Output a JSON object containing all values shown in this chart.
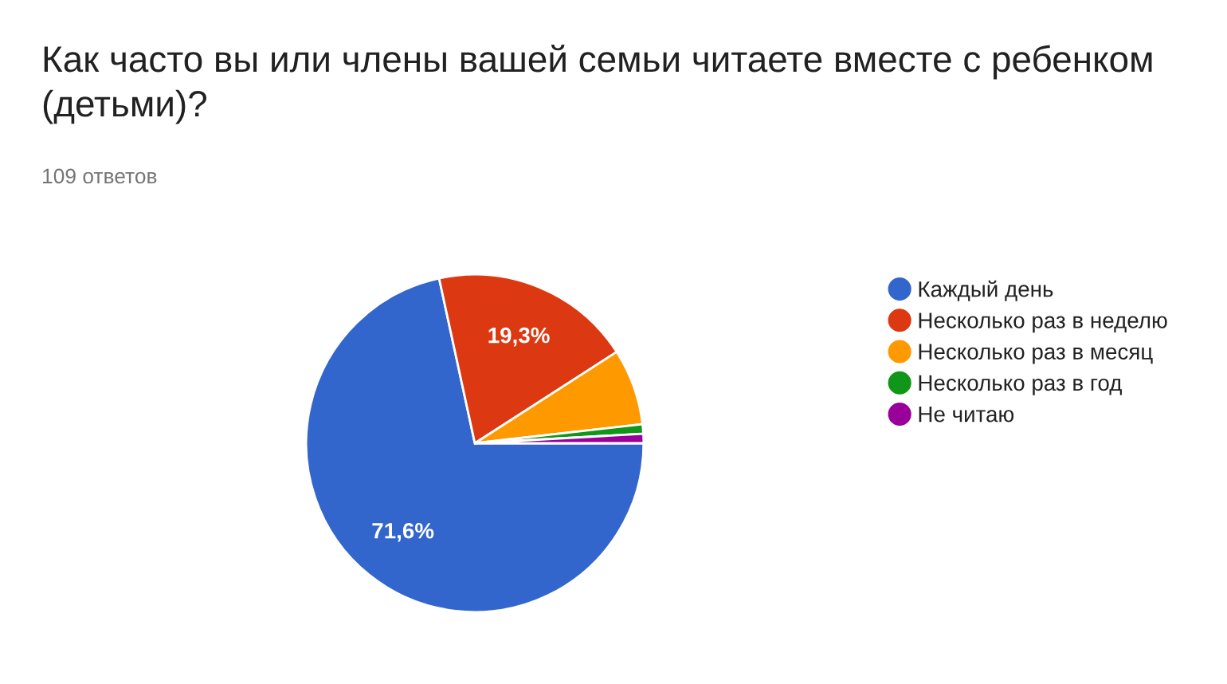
{
  "chart_data": {
    "type": "pie",
    "title": "Как часто вы или члены вашей семьи читаете вместе с ребенком (детьми)?",
    "subtitle": "109 ответов",
    "categories": [
      "Каждый день",
      "Несколько раз в неделю",
      "Несколько раз в месяц",
      "Несколько раз в год",
      "Не читаю"
    ],
    "values": [
      71.6,
      19.3,
      7.3,
      0.9,
      0.9
    ],
    "colors": [
      "#3366cc",
      "#dc3912",
      "#ff9900",
      "#109618",
      "#990099"
    ],
    "value_labels": [
      "71,6%",
      "19,3%",
      null,
      null,
      null
    ],
    "legend": "right"
  }
}
